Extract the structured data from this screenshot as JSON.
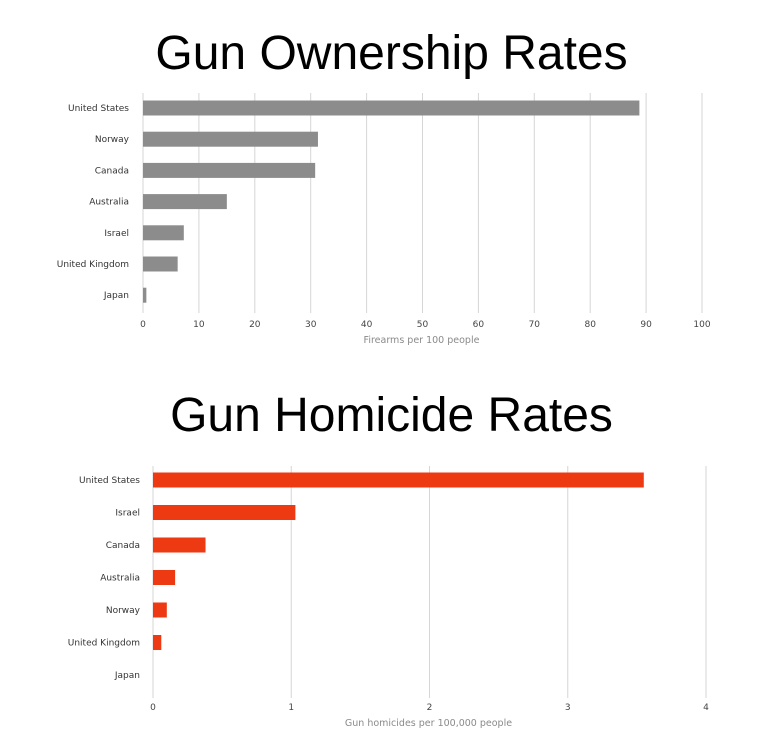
{
  "chart_data": [
    {
      "type": "bar",
      "orientation": "horizontal",
      "title": "Gun Ownership Rates",
      "categories": [
        "United States",
        "Norway",
        "Canada",
        "Australia",
        "Israel",
        "United Kingdom",
        "Japan"
      ],
      "values": [
        88.8,
        31.3,
        30.8,
        15.0,
        7.3,
        6.2,
        0.6
      ],
      "xlabel": "Firearms per 100 people",
      "ylabel": "",
      "xlim": [
        0,
        100
      ],
      "xticks": [
        "0",
        "10",
        "20",
        "30",
        "40",
        "50",
        "60",
        "70",
        "80",
        "90",
        "100"
      ],
      "grid": true,
      "bar_color": "#8c8c8c"
    },
    {
      "type": "bar",
      "orientation": "horizontal",
      "title": "Gun Homicide Rates",
      "categories": [
        "United States",
        "Israel",
        "Canada",
        "Australia",
        "Norway",
        "United Kingdom",
        "Japan"
      ],
      "values": [
        3.55,
        1.03,
        0.38,
        0.16,
        0.1,
        0.06,
        0.0
      ],
      "xlabel": "Gun homicides per 100,000 people",
      "ylabel": "",
      "xlim": [
        0,
        4
      ],
      "xticks": [
        "0",
        "1",
        "2",
        "3",
        "4"
      ],
      "grid": true,
      "bar_color": "#ee3a12"
    }
  ]
}
